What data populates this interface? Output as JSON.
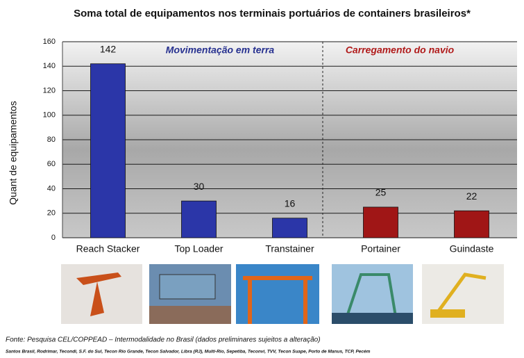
{
  "chart_data": {
    "type": "bar",
    "title": "Soma total de equipamentos nos terminais portuários de containers brasileiros*",
    "y_label": "Quant de equipamentos",
    "categories": [
      "Reach Stacker",
      "Top Loader",
      "Transtainer",
      "Portainer",
      "Guindaste"
    ],
    "values": [
      142,
      30,
      16,
      25,
      22
    ],
    "colors": [
      "#2b36a8",
      "#2b36a8",
      "#2b36a8",
      "#a01616",
      "#a01616"
    ],
    "ylim": [
      0,
      160
    ],
    "yticks": [
      0,
      20,
      40,
      60,
      80,
      100,
      120,
      140,
      160
    ],
    "grid": true,
    "annotations": [
      {
        "text": "Movimentação em terra",
        "color": "#26308f"
      },
      {
        "text": "Carregamento do navio",
        "color": "#b01a1a"
      }
    ],
    "source": "Fonte: Pesquisa CEL/COPPEAD – Intermodalidade no Brasil (dados preliminares sujeitos a alteração)",
    "source_detail": "Santos Brasil, Rodrimar, Tecondi, S.F. do Sul, Tecon Rio Grande, Tecon Salvador, Libra (RJ), Multi-Rio, Sepetiba, Teconvi, TVV, Tecon Suape, Porto de Manus, TCP, Pecém"
  }
}
